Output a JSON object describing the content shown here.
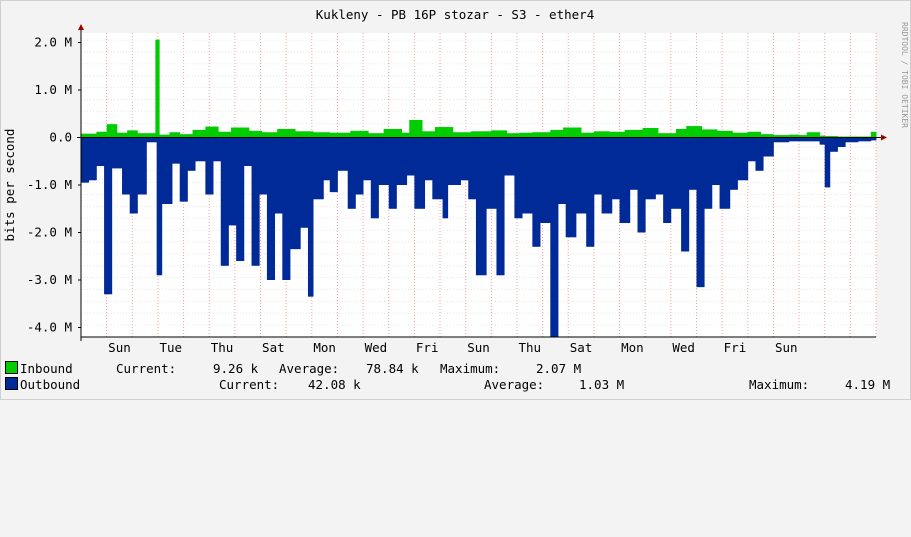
{
  "chart_data": {
    "type": "area",
    "title": "Kukleny - PB 16P stozar - S3 - ether4",
    "ylabel": "bits per second",
    "watermark": "RRDTOOL / TOBI OETIKER",
    "ylim": [
      -4200000,
      2200000
    ],
    "yticks": [
      {
        "value": 2000000,
        "label": "2.0 M"
      },
      {
        "value": 1000000,
        "label": "1.0 M"
      },
      {
        "value": 0,
        "label": "0.0"
      },
      {
        "value": -1000000,
        "label": "-1.0 M"
      },
      {
        "value": -2000000,
        "label": "-2.0 M"
      },
      {
        "value": -3000000,
        "label": "-3.0 M"
      },
      {
        "value": -4000000,
        "label": "-4.0 M"
      }
    ],
    "xlim": [
      0,
      31
    ],
    "xticks": [
      {
        "day": 1.5,
        "label": "Sun"
      },
      {
        "day": 3.5,
        "label": "Tue"
      },
      {
        "day": 5.5,
        "label": "Thu"
      },
      {
        "day": 7.5,
        "label": "Sat"
      },
      {
        "day": 9.5,
        "label": "Mon"
      },
      {
        "day": 11.5,
        "label": "Wed"
      },
      {
        "day": 13.5,
        "label": "Fri"
      },
      {
        "day": 15.5,
        "label": "Sun"
      },
      {
        "day": 17.5,
        "label": "Thu"
      },
      {
        "day": 19.5,
        "label": "Sat"
      },
      {
        "day": 21.5,
        "label": "Mon"
      },
      {
        "day": 23.5,
        "label": "Wed"
      },
      {
        "day": 25.5,
        "label": "Fri"
      },
      {
        "day": 27.5,
        "label": "Sun"
      }
    ],
    "grid": true,
    "series": [
      {
        "name": "Inbound",
        "color": "#00cc00",
        "direction": "up",
        "points": [
          [
            0.0,
            80000
          ],
          [
            0.6,
            120000
          ],
          [
            1.0,
            280000
          ],
          [
            1.4,
            100000
          ],
          [
            1.8,
            150000
          ],
          [
            2.2,
            90000
          ],
          [
            2.85,
            2060000
          ],
          [
            3.0,
            60000
          ],
          [
            3.4,
            110000
          ],
          [
            3.8,
            70000
          ],
          [
            4.3,
            160000
          ],
          [
            4.8,
            230000
          ],
          [
            5.3,
            120000
          ],
          [
            5.8,
            210000
          ],
          [
            6.5,
            140000
          ],
          [
            7.0,
            110000
          ],
          [
            7.6,
            180000
          ],
          [
            8.3,
            130000
          ],
          [
            9.0,
            110000
          ],
          [
            9.7,
            100000
          ],
          [
            10.5,
            140000
          ],
          [
            11.2,
            90000
          ],
          [
            11.8,
            180000
          ],
          [
            12.5,
            100000
          ],
          [
            12.8,
            370000
          ],
          [
            13.3,
            130000
          ],
          [
            13.8,
            220000
          ],
          [
            14.5,
            110000
          ],
          [
            15.2,
            130000
          ],
          [
            16.0,
            150000
          ],
          [
            16.6,
            90000
          ],
          [
            17.1,
            100000
          ],
          [
            17.6,
            110000
          ],
          [
            18.3,
            160000
          ],
          [
            18.8,
            210000
          ],
          [
            19.5,
            100000
          ],
          [
            20.0,
            130000
          ],
          [
            20.6,
            120000
          ],
          [
            21.2,
            160000
          ],
          [
            21.9,
            200000
          ],
          [
            22.5,
            90000
          ],
          [
            23.2,
            180000
          ],
          [
            23.6,
            240000
          ],
          [
            24.2,
            170000
          ],
          [
            24.8,
            140000
          ],
          [
            25.4,
            100000
          ],
          [
            26.0,
            120000
          ],
          [
            26.5,
            70000
          ],
          [
            27.0,
            50000
          ],
          [
            27.6,
            60000
          ],
          [
            28.0,
            50000
          ],
          [
            28.3,
            110000
          ],
          [
            28.8,
            40000
          ],
          [
            29.0,
            30000
          ],
          [
            29.5,
            20000
          ],
          [
            30.3,
            20000
          ],
          [
            30.8,
            120000
          ],
          [
            31.0,
            20000
          ]
        ]
      },
      {
        "name": "Outbound",
        "color": "#002a97",
        "direction": "down",
        "points": [
          [
            0.0,
            950000
          ],
          [
            0.3,
            900000
          ],
          [
            0.6,
            600000
          ],
          [
            0.9,
            3300000
          ],
          [
            1.2,
            650000
          ],
          [
            1.6,
            1200000
          ],
          [
            1.9,
            1600000
          ],
          [
            2.2,
            1200000
          ],
          [
            2.5,
            100000
          ],
          [
            2.9,
            2900000
          ],
          [
            3.1,
            1400000
          ],
          [
            3.5,
            550000
          ],
          [
            3.8,
            1350000
          ],
          [
            4.1,
            700000
          ],
          [
            4.4,
            500000
          ],
          [
            4.8,
            1200000
          ],
          [
            5.1,
            500000
          ],
          [
            5.4,
            2700000
          ],
          [
            5.7,
            1850000
          ],
          [
            6.0,
            2600000
          ],
          [
            6.3,
            600000
          ],
          [
            6.6,
            2700000
          ],
          [
            6.9,
            1200000
          ],
          [
            7.2,
            3000000
          ],
          [
            7.5,
            1600000
          ],
          [
            7.8,
            3000000
          ],
          [
            8.1,
            2350000
          ],
          [
            8.5,
            1900000
          ],
          [
            8.8,
            3350000
          ],
          [
            9.0,
            1300000
          ],
          [
            9.4,
            900000
          ],
          [
            9.7,
            1150000
          ],
          [
            10.0,
            700000
          ],
          [
            10.4,
            1500000
          ],
          [
            10.7,
            1200000
          ],
          [
            11.0,
            900000
          ],
          [
            11.3,
            1700000
          ],
          [
            11.6,
            1000000
          ],
          [
            12.0,
            1500000
          ],
          [
            12.3,
            1000000
          ],
          [
            12.7,
            800000
          ],
          [
            13.0,
            1500000
          ],
          [
            13.4,
            900000
          ],
          [
            13.7,
            1300000
          ],
          [
            14.1,
            1700000
          ],
          [
            14.3,
            1000000
          ],
          [
            14.8,
            900000
          ],
          [
            15.1,
            1300000
          ],
          [
            15.4,
            2900000
          ],
          [
            15.8,
            1500000
          ],
          [
            16.2,
            2900000
          ],
          [
            16.5,
            800000
          ],
          [
            16.9,
            1700000
          ],
          [
            17.2,
            1600000
          ],
          [
            17.6,
            2300000
          ],
          [
            17.9,
            1800000
          ],
          [
            18.3,
            4200000
          ],
          [
            18.6,
            1400000
          ],
          [
            18.9,
            2100000
          ],
          [
            19.3,
            1600000
          ],
          [
            19.7,
            2300000
          ],
          [
            20.0,
            1200000
          ],
          [
            20.3,
            1600000
          ],
          [
            20.7,
            1300000
          ],
          [
            21.0,
            1800000
          ],
          [
            21.4,
            1100000
          ],
          [
            21.7,
            2000000
          ],
          [
            22.0,
            1300000
          ],
          [
            22.4,
            1200000
          ],
          [
            22.7,
            1800000
          ],
          [
            23.0,
            1500000
          ],
          [
            23.4,
            2400000
          ],
          [
            23.7,
            1100000
          ],
          [
            24.0,
            3150000
          ],
          [
            24.3,
            1500000
          ],
          [
            24.6,
            1000000
          ],
          [
            24.9,
            1500000
          ],
          [
            25.3,
            1100000
          ],
          [
            25.6,
            900000
          ],
          [
            26.0,
            500000
          ],
          [
            26.3,
            700000
          ],
          [
            26.6,
            400000
          ],
          [
            27.0,
            100000
          ],
          [
            27.6,
            80000
          ],
          [
            28.2,
            80000
          ],
          [
            28.8,
            150000
          ],
          [
            29.0,
            1050000
          ],
          [
            29.2,
            300000
          ],
          [
            29.5,
            200000
          ],
          [
            29.8,
            100000
          ],
          [
            30.3,
            80000
          ],
          [
            30.8,
            60000
          ],
          [
            31.0,
            50000
          ]
        ]
      }
    ]
  },
  "legend": {
    "inbound": {
      "label": "Inbound",
      "current_label": "Current:",
      "current_value": "9.26 k",
      "average_label": "Average:",
      "average_value": "78.84 k",
      "maximum_label": "Maximum:",
      "maximum_value": "2.07 M",
      "color": "#00cc00"
    },
    "outbound": {
      "label": "Outbound",
      "current_label": "Current:",
      "current_value": "42.08 k",
      "average_label": "Average:",
      "average_value": "1.03 M",
      "maximum_label": "Maximum:",
      "maximum_value": "4.19 M",
      "color": "#002a97"
    }
  }
}
